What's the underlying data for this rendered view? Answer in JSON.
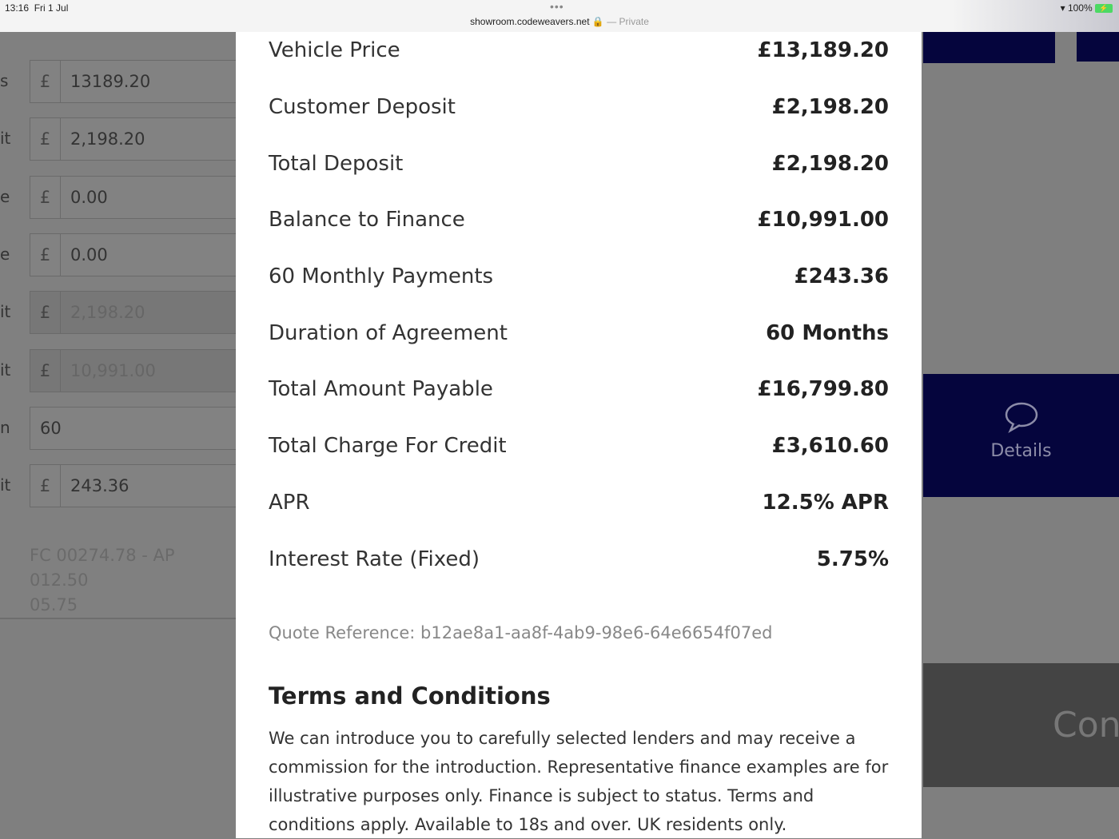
{
  "status_bar": {
    "time": "13:16",
    "date": "Fri 1 Jul",
    "url": "showroom.codeweavers.net",
    "private": "— Private",
    "battery": "100%"
  },
  "form": {
    "labels": [
      "s",
      "it",
      "e",
      "e",
      "it",
      "it",
      "n",
      "it"
    ],
    "fields": [
      {
        "currency": "£",
        "value": "13189.20",
        "disabled": false
      },
      {
        "currency": "£",
        "value": "2,198.20",
        "disabled": false
      },
      {
        "currency": "£",
        "value": "0.00",
        "disabled": false
      },
      {
        "currency": "£",
        "value": "0.00",
        "disabled": false
      },
      {
        "currency": "£",
        "value": "2,198.20",
        "disabled": true
      },
      {
        "currency": "£",
        "value": "10,991.00",
        "disabled": true
      },
      {
        "currency": "",
        "value": "60",
        "disabled": false
      },
      {
        "currency": "£",
        "value": "243.36",
        "disabled": false
      }
    ],
    "note_line1": "FC 00274.78 - AP 012.50",
    "note_line2": "05.75"
  },
  "details_button": {
    "label": "Details",
    "icon": "speech-bubble-icon"
  },
  "continue_button": {
    "label": "Con"
  },
  "quote": {
    "rows": [
      {
        "label": "Vehicle Price",
        "value": "£13,189.20"
      },
      {
        "label": "Customer Deposit",
        "value": "£2,198.20"
      },
      {
        "label": "Total Deposit",
        "value": "£2,198.20"
      },
      {
        "label": "Balance to Finance",
        "value": "£10,991.00"
      },
      {
        "label": "60 Monthly Payments",
        "value": "£243.36"
      },
      {
        "label": "Duration of Agreement",
        "value": "60 Months"
      },
      {
        "label": "Total Amount Payable",
        "value": "£16,799.80"
      },
      {
        "label": "Total Charge For Credit",
        "value": "£3,610.60"
      },
      {
        "label": "APR",
        "value": "12.5% APR"
      },
      {
        "label": "Interest Rate (Fixed)",
        "value": "5.75%"
      }
    ],
    "reference": "Quote Reference: b12ae8a1-aa8f-4ab9-98e6-64e6654f07ed",
    "terms_title": "Terms and Conditions",
    "terms_text": "We can introduce you to carefully selected lenders and may receive a commission for the introduction. Representative finance examples are for illustrative purposes only. Finance is subject to status. Terms and conditions apply. Available to 18s and over. UK residents only."
  }
}
